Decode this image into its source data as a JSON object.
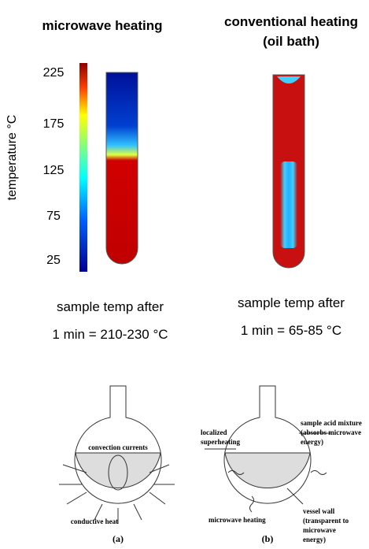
{
  "left": {
    "title": "microwave heating",
    "caption": [
      "sample temp after",
      "1 min = 210-230 °C"
    ]
  },
  "right": {
    "title": [
      "conventional heating",
      "(oil bath)"
    ],
    "caption": [
      "sample temp after",
      "1 min = 65-85 °C"
    ]
  },
  "colorbar": {
    "label": "temperature °C",
    "ticks": [
      225,
      175,
      125,
      75,
      25
    ]
  },
  "diagram_a": {
    "labels": [
      "convection currents",
      "conductive heat"
    ],
    "panel": "(a)"
  },
  "diagram_b": {
    "labels": [
      "localized",
      "superheating",
      "sample acid mixture",
      "(absorbs microwave",
      "energy)",
      "microwave heating",
      "vessel wall",
      "(transparent to",
      "microwave",
      "energy)"
    ],
    "panel": "(b)"
  }
}
